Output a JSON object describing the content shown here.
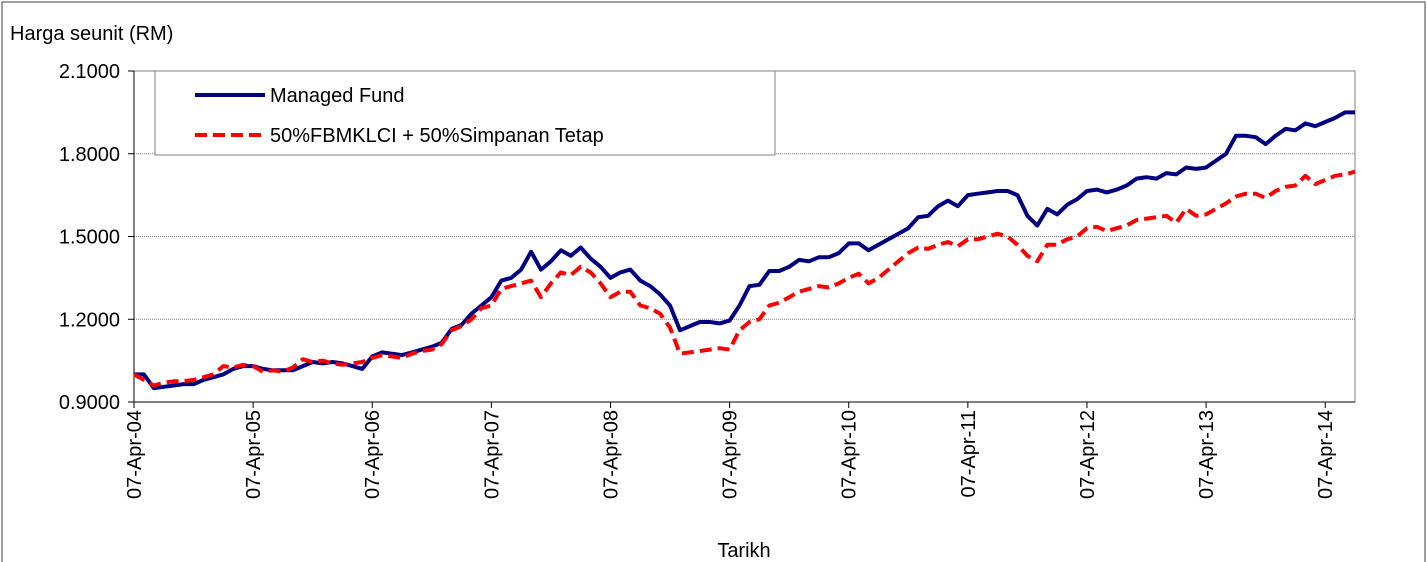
{
  "chart_data": {
    "type": "line",
    "y_axis_label": "Harga seunit (RM)",
    "x_axis_label": "Tarikh",
    "categories": [
      "07-Apr-04",
      null,
      null,
      null,
      null,
      null,
      null,
      null,
      null,
      null,
      null,
      null,
      "07-Apr-05",
      null,
      null,
      null,
      null,
      null,
      null,
      null,
      null,
      null,
      null,
      null,
      "07-Apr-06",
      null,
      null,
      null,
      null,
      null,
      null,
      null,
      null,
      null,
      null,
      null,
      "07-Apr-07",
      null,
      null,
      null,
      null,
      null,
      null,
      null,
      null,
      null,
      null,
      null,
      "07-Apr-08",
      null,
      null,
      null,
      null,
      null,
      null,
      null,
      null,
      null,
      null,
      null,
      "07-Apr-09",
      null,
      null,
      null,
      null,
      null,
      null,
      null,
      null,
      null,
      null,
      null,
      "07-Apr-10",
      null,
      null,
      null,
      null,
      null,
      null,
      null,
      null,
      null,
      null,
      null,
      "07-Apr-11",
      null,
      null,
      null,
      null,
      null,
      null,
      null,
      null,
      null,
      null,
      null,
      "07-Apr-12",
      null,
      null,
      null,
      null,
      null,
      null,
      null,
      null,
      null,
      null,
      null,
      "07-Apr-13",
      null,
      null,
      null,
      null,
      null,
      null,
      null,
      null,
      null,
      null,
      null,
      "07-Apr-14",
      null,
      null,
      null
    ],
    "series": [
      {
        "name": "Managed Fund",
        "color": "#000080",
        "dash": false,
        "values": [
          1.0,
          1.0,
          0.95,
          0.955,
          0.96,
          0.965,
          0.965,
          0.98,
          0.99,
          1.0,
          1.02,
          1.03,
          1.03,
          1.02,
          1.015,
          1.015,
          1.015,
          1.03,
          1.045,
          1.04,
          1.045,
          1.04,
          1.03,
          1.02,
          1.065,
          1.08,
          1.075,
          1.07,
          1.08,
          1.09,
          1.1,
          1.115,
          1.165,
          1.18,
          1.22,
          1.25,
          1.28,
          1.34,
          1.35,
          1.38,
          1.445,
          1.38,
          1.41,
          1.45,
          1.43,
          1.46,
          1.42,
          1.39,
          1.35,
          1.37,
          1.38,
          1.34,
          1.32,
          1.29,
          1.25,
          1.16,
          1.175,
          1.19,
          1.19,
          1.185,
          1.195,
          1.25,
          1.32,
          1.325,
          1.375,
          1.375,
          1.39,
          1.415,
          1.41,
          1.425,
          1.425,
          1.44,
          1.475,
          1.475,
          1.45,
          1.47,
          1.49,
          1.51,
          1.53,
          1.57,
          1.575,
          1.61,
          1.63,
          1.61,
          1.65,
          1.655,
          1.66,
          1.665,
          1.665,
          1.65,
          1.575,
          1.54,
          1.6,
          1.58,
          1.615,
          1.635,
          1.665,
          1.67,
          1.66,
          1.67,
          1.685,
          1.71,
          1.715,
          1.71,
          1.73,
          1.725,
          1.75,
          1.745,
          1.75,
          1.775,
          1.8,
          1.865,
          1.865,
          1.86,
          1.835,
          1.865,
          1.89,
          1.885,
          1.91,
          1.9,
          1.915,
          1.93,
          1.95,
          1.95
        ]
      },
      {
        "name": "50%FBMKLCI + 50%Simpanan Tetap",
        "color": "#ff0000",
        "dash": true,
        "values": [
          1.0,
          0.98,
          0.96,
          0.97,
          0.975,
          0.975,
          0.98,
          0.99,
          1.0,
          1.03,
          1.025,
          1.035,
          1.03,
          1.01,
          1.015,
          1.01,
          1.025,
          1.055,
          1.045,
          1.05,
          1.04,
          1.035,
          1.04,
          1.045,
          1.06,
          1.07,
          1.065,
          1.06,
          1.075,
          1.085,
          1.09,
          1.11,
          1.16,
          1.175,
          1.2,
          1.24,
          1.25,
          1.31,
          1.32,
          1.33,
          1.34,
          1.28,
          1.33,
          1.37,
          1.36,
          1.39,
          1.37,
          1.33,
          1.28,
          1.3,
          1.3,
          1.25,
          1.24,
          1.22,
          1.17,
          1.075,
          1.08,
          1.085,
          1.09,
          1.095,
          1.09,
          1.16,
          1.19,
          1.2,
          1.25,
          1.26,
          1.28,
          1.3,
          1.31,
          1.32,
          1.315,
          1.33,
          1.35,
          1.365,
          1.33,
          1.35,
          1.38,
          1.41,
          1.44,
          1.46,
          1.455,
          1.47,
          1.48,
          1.465,
          1.49,
          1.49,
          1.5,
          1.51,
          1.5,
          1.47,
          1.43,
          1.41,
          1.47,
          1.47,
          1.49,
          1.5,
          1.53,
          1.535,
          1.52,
          1.53,
          1.54,
          1.56,
          1.565,
          1.57,
          1.575,
          1.55,
          1.6,
          1.575,
          1.58,
          1.6,
          1.62,
          1.645,
          1.655,
          1.655,
          1.64,
          1.665,
          1.68,
          1.685,
          1.72,
          1.69,
          1.705,
          1.72,
          1.725,
          1.735
        ]
      }
    ],
    "ylim": [
      0.9,
      2.1
    ],
    "yticks": [
      {
        "value": 0.9,
        "label": "0.9000"
      },
      {
        "value": 1.2,
        "label": "1.2000"
      },
      {
        "value": 1.5,
        "label": "1.5000"
      },
      {
        "value": 1.8,
        "label": "1.8000"
      },
      {
        "value": 2.1,
        "label": "2.1000"
      }
    ],
    "grid": true,
    "legend": "top-left"
  }
}
